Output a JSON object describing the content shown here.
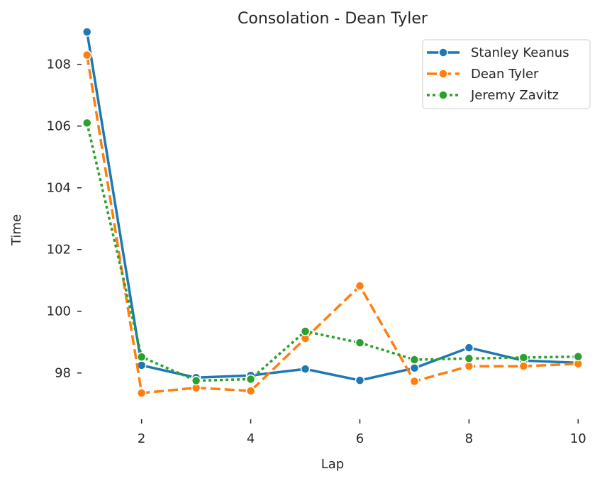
{
  "chart_data": {
    "type": "line",
    "title": "Consolation - Dean Tyler",
    "xlabel": "Lap",
    "ylabel": "Time",
    "xlim": [
      0.9,
      10.1
    ],
    "ylim": [
      96.5,
      109.05
    ],
    "xticks": [
      2,
      4,
      6,
      8,
      10
    ],
    "yticks": [
      98,
      100,
      102,
      104,
      106,
      108
    ],
    "grid": false,
    "legend_position": "top-right",
    "x": [
      1,
      2,
      3,
      4,
      5,
      6,
      7,
      8,
      9,
      10
    ],
    "series": [
      {
        "name": "Stanley Keanus",
        "color": "#1f77b4",
        "style": "solid",
        "values": [
          109.05,
          98.25,
          97.85,
          97.92,
          98.13,
          97.76,
          98.16,
          98.82,
          98.4,
          98.33
        ]
      },
      {
        "name": "Dean Tyler",
        "color": "#ff7f0e",
        "style": "dashed",
        "values": [
          108.3,
          97.35,
          97.52,
          97.42,
          99.12,
          100.82,
          97.73,
          98.22,
          98.22,
          98.3
        ]
      },
      {
        "name": "Jeremy Zavitz",
        "color": "#2ca02c",
        "style": "dotted",
        "values": [
          106.1,
          98.52,
          97.75,
          97.8,
          99.35,
          98.98,
          98.43,
          98.47,
          98.5,
          98.53
        ]
      }
    ]
  }
}
